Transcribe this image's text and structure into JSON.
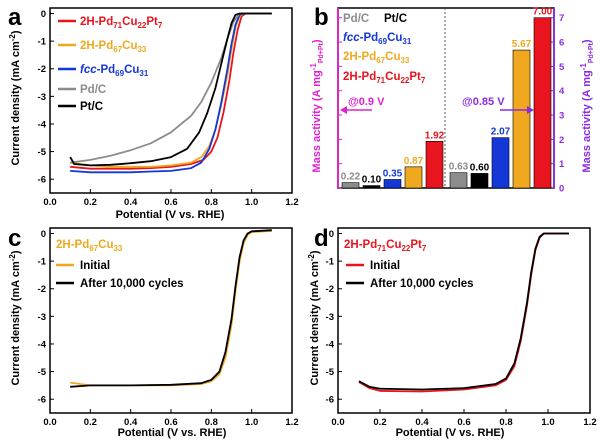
{
  "colors": {
    "pt_alloy": "#e8141e",
    "pd67cu33": "#f0a81e",
    "fcc": "#1437d8",
    "pdc": "#8c8c8c",
    "ptc": "#000000",
    "magenta": "#e020d0",
    "purple": "#8a2be2"
  },
  "chart_data": [
    {
      "panel": "a",
      "type": "line",
      "xlabel": "Potential (V vs. RHE)",
      "ylabel": "Current density (mA cm⁻²)",
      "xlim": [
        0.0,
        1.2
      ],
      "ylim": [
        -6.5,
        0.2
      ],
      "xticks": [
        "0.0",
        "0.2",
        "0.4",
        "0.6",
        "0.8",
        "1.0",
        "1.2"
      ],
      "yticks": [
        "0",
        "-1",
        "-2",
        "-3",
        "-4",
        "-5",
        "-6"
      ],
      "series": [
        {
          "name": "2H-Pd71Cu22Pt7",
          "key": "red",
          "points": [
            [
              0.1,
              -5.55
            ],
            [
              0.2,
              -5.62
            ],
            [
              0.3,
              -5.62
            ],
            [
              0.4,
              -5.62
            ],
            [
              0.5,
              -5.6
            ],
            [
              0.6,
              -5.55
            ],
            [
              0.7,
              -5.45
            ],
            [
              0.76,
              -5.3
            ],
            [
              0.8,
              -5.0
            ],
            [
              0.83,
              -4.5
            ],
            [
              0.86,
              -3.6
            ],
            [
              0.89,
              -2.4
            ],
            [
              0.91,
              -1.4
            ],
            [
              0.93,
              -0.6
            ],
            [
              0.95,
              -0.1
            ],
            [
              0.97,
              0.0
            ],
            [
              1.1,
              0.0
            ]
          ]
        },
        {
          "name": "2H-Pd67Cu33",
          "key": "orange",
          "points": [
            [
              0.1,
              -5.4
            ],
            [
              0.2,
              -5.5
            ],
            [
              0.3,
              -5.55
            ],
            [
              0.4,
              -5.55
            ],
            [
              0.5,
              -5.55
            ],
            [
              0.6,
              -5.5
            ],
            [
              0.7,
              -5.4
            ],
            [
              0.75,
              -5.2
            ],
            [
              0.79,
              -4.8
            ],
            [
              0.82,
              -4.2
            ],
            [
              0.85,
              -3.3
            ],
            [
              0.88,
              -2.2
            ],
            [
              0.9,
              -1.3
            ],
            [
              0.92,
              -0.5
            ],
            [
              0.94,
              -0.1
            ],
            [
              0.96,
              0.0
            ],
            [
              1.1,
              0.0
            ]
          ]
        },
        {
          "name": "fcc-Pd69Cu31",
          "key": "blue",
          "points": [
            [
              0.1,
              -5.7
            ],
            [
              0.2,
              -5.75
            ],
            [
              0.3,
              -5.75
            ],
            [
              0.4,
              -5.75
            ],
            [
              0.5,
              -5.72
            ],
            [
              0.6,
              -5.7
            ],
            [
              0.7,
              -5.6
            ],
            [
              0.75,
              -5.4
            ],
            [
              0.79,
              -4.9
            ],
            [
              0.82,
              -4.2
            ],
            [
              0.85,
              -3.2
            ],
            [
              0.88,
              -2.0
            ],
            [
              0.9,
              -1.1
            ],
            [
              0.92,
              -0.4
            ],
            [
              0.94,
              -0.05
            ],
            [
              0.96,
              0.0
            ],
            [
              1.1,
              0.0
            ]
          ]
        },
        {
          "name": "Pd/C",
          "key": "gray",
          "points": [
            [
              0.1,
              -5.4
            ],
            [
              0.2,
              -5.3
            ],
            [
              0.3,
              -5.15
            ],
            [
              0.4,
              -4.95
            ],
            [
              0.5,
              -4.7
            ],
            [
              0.6,
              -4.3
            ],
            [
              0.7,
              -3.7
            ],
            [
              0.75,
              -3.2
            ],
            [
              0.8,
              -2.5
            ],
            [
              0.85,
              -1.6
            ],
            [
              0.88,
              -0.9
            ],
            [
              0.91,
              -0.3
            ],
            [
              0.94,
              0.0
            ],
            [
              1.1,
              0.0
            ]
          ]
        },
        {
          "name": "Pt/C",
          "key": "black",
          "points": [
            [
              0.1,
              -5.2
            ],
            [
              0.12,
              -5.45
            ],
            [
              0.2,
              -5.5
            ],
            [
              0.3,
              -5.48
            ],
            [
              0.4,
              -5.42
            ],
            [
              0.5,
              -5.35
            ],
            [
              0.6,
              -5.2
            ],
            [
              0.68,
              -4.9
            ],
            [
              0.74,
              -4.3
            ],
            [
              0.78,
              -3.6
            ],
            [
              0.82,
              -2.7
            ],
            [
              0.85,
              -1.8
            ],
            [
              0.88,
              -0.9
            ],
            [
              0.9,
              -0.35
            ],
            [
              0.92,
              -0.05
            ],
            [
              0.94,
              0.0
            ],
            [
              1.1,
              0.0
            ]
          ]
        }
      ],
      "legend": [
        "2H-Pd71Cu22Pt7",
        "2H-Pd67Cu33",
        "fcc-Pd69Cu31",
        "Pd/C",
        "Pt/C"
      ]
    },
    {
      "panel": "b",
      "type": "bar",
      "ylabel_left": "Mass activity (A mg⁻¹Pd+Pt)",
      "ylabel_right": "Mass activity (A mg⁻¹Pd+Pt)",
      "ylim": [
        0,
        7.4
      ],
      "yticks": [
        "0",
        "1",
        "2",
        "3",
        "4",
        "5",
        "6",
        "7"
      ],
      "groups": [
        "@0.9 V",
        "@0.85 V"
      ],
      "catalysts": [
        "Pd/C",
        "Pt/C",
        "fcc-Pd69Cu31",
        "2H-Pd67Cu33",
        "2H-Pd71Cu22Pt7"
      ],
      "values_0_9V": [
        0.22,
        0.1,
        0.35,
        0.87,
        1.92
      ],
      "values_0_85V": [
        0.63,
        0.6,
        2.07,
        5.67,
        7.0
      ],
      "value_labels_0_9V": [
        "0.22",
        "0.10",
        "0.35",
        "0.87",
        "1.92"
      ],
      "value_labels_0_85V": [
        "0.63",
        "0.60",
        "2.07",
        "5.67",
        "7.00"
      ]
    },
    {
      "panel": "c",
      "type": "line",
      "title": "2H-Pd67Cu33",
      "xlabel": "Potential (V vs. RHE)",
      "ylabel": "Current density (mA cm⁻²)",
      "xlim": [
        0.0,
        1.2
      ],
      "ylim": [
        -6.5,
        0.2
      ],
      "xticks": [
        "0.0",
        "0.2",
        "0.4",
        "0.6",
        "0.8",
        "1.0",
        "1.2"
      ],
      "yticks": [
        "0",
        "-1",
        "-2",
        "-3",
        "-4",
        "-5",
        "-6"
      ],
      "series": [
        {
          "name": "Initial",
          "key": "orange",
          "points": [
            [
              0.1,
              -5.4
            ],
            [
              0.2,
              -5.5
            ],
            [
              0.4,
              -5.5
            ],
            [
              0.6,
              -5.5
            ],
            [
              0.75,
              -5.45
            ],
            [
              0.8,
              -5.35
            ],
            [
              0.84,
              -5.1
            ],
            [
              0.87,
              -4.5
            ],
            [
              0.9,
              -3.3
            ],
            [
              0.92,
              -2.1
            ],
            [
              0.94,
              -1.0
            ],
            [
              0.96,
              -0.35
            ],
            [
              0.98,
              -0.05
            ],
            [
              1.0,
              0.05
            ],
            [
              1.1,
              0.1
            ]
          ]
        },
        {
          "name": "After 10,000 cycles",
          "key": "black",
          "points": [
            [
              0.1,
              -5.55
            ],
            [
              0.2,
              -5.5
            ],
            [
              0.4,
              -5.5
            ],
            [
              0.6,
              -5.48
            ],
            [
              0.75,
              -5.42
            ],
            [
              0.8,
              -5.3
            ],
            [
              0.84,
              -5.0
            ],
            [
              0.87,
              -4.3
            ],
            [
              0.9,
              -3.1
            ],
            [
              0.92,
              -1.9
            ],
            [
              0.94,
              -0.85
            ],
            [
              0.96,
              -0.25
            ],
            [
              0.98,
              0.0
            ],
            [
              1.0,
              0.08
            ],
            [
              1.1,
              0.12
            ]
          ]
        }
      ],
      "legend": [
        "Initial",
        "After 10,000 cycles"
      ]
    },
    {
      "panel": "d",
      "type": "line",
      "title": "2H-Pd71Cu22Pt7",
      "xlabel": "Potential (V vs. RHE)",
      "ylabel": "Current density (mA cm⁻²)",
      "xlim": [
        0.0,
        1.2
      ],
      "ylim": [
        -6.5,
        0.2
      ],
      "xticks": [
        "0.0",
        "0.2",
        "0.4",
        "0.6",
        "0.8",
        "1.0",
        "1.2"
      ],
      "yticks": [
        "0",
        "-1",
        "-2",
        "-3",
        "-4",
        "-5",
        "-6"
      ],
      "series": [
        {
          "name": "Initial",
          "key": "red",
          "points": [
            [
              0.1,
              -5.38
            ],
            [
              0.15,
              -5.6
            ],
            [
              0.2,
              -5.7
            ],
            [
              0.4,
              -5.72
            ],
            [
              0.6,
              -5.65
            ],
            [
              0.75,
              -5.5
            ],
            [
              0.8,
              -5.3
            ],
            [
              0.84,
              -4.8
            ],
            [
              0.87,
              -3.9
            ],
            [
              0.9,
              -2.6
            ],
            [
              0.92,
              -1.5
            ],
            [
              0.94,
              -0.6
            ],
            [
              0.96,
              -0.15
            ],
            [
              0.98,
              0.0
            ],
            [
              1.1,
              0.0
            ]
          ]
        },
        {
          "name": "After 10,000 cycles",
          "key": "black",
          "points": [
            [
              0.1,
              -5.35
            ],
            [
              0.15,
              -5.55
            ],
            [
              0.2,
              -5.62
            ],
            [
              0.4,
              -5.65
            ],
            [
              0.6,
              -5.6
            ],
            [
              0.75,
              -5.45
            ],
            [
              0.8,
              -5.25
            ],
            [
              0.84,
              -4.7
            ],
            [
              0.87,
              -3.8
            ],
            [
              0.9,
              -2.5
            ],
            [
              0.92,
              -1.4
            ],
            [
              0.94,
              -0.55
            ],
            [
              0.96,
              -0.12
            ],
            [
              0.98,
              0.0
            ],
            [
              1.1,
              0.0
            ]
          ]
        }
      ],
      "legend": [
        "Initial",
        "After 10,000 cycles"
      ]
    }
  ],
  "labels": {
    "panel_a": "a",
    "panel_b": "b",
    "panel_c": "c",
    "panel_d": "d",
    "xlabel": "Potential (V vs. RHE)",
    "ylabel_cd": "Current density (mA cm",
    "ylabel_sup": "-2",
    "ylabel_close": ")",
    "mass_activity": "Mass activity (A mg",
    "mass_sup": "-1",
    "mass_sub": "Pd+Pt",
    "mass_close": ")",
    "at09": "@0.9 V",
    "at085": "@0.85 V",
    "leg_red_base": "2H-Pd",
    "leg_red_s1": "71",
    "leg_red_cu": "Cu",
    "leg_red_s2": "22",
    "leg_red_pt": "Pt",
    "leg_red_s3": "7",
    "leg_or_base": "2H-Pd",
    "leg_or_s1": "67",
    "leg_or_cu": "Cu",
    "leg_or_s2": "33",
    "leg_fcc_it": "fcc",
    "leg_fcc_base": "-Pd",
    "leg_fcc_s1": "69",
    "leg_fcc_cu": "Cu",
    "leg_fcc_s2": "31",
    "leg_pdc": "Pd/C",
    "leg_ptc": "Pt/C",
    "initial": "Initial",
    "after": "After 10,000 cycles"
  }
}
